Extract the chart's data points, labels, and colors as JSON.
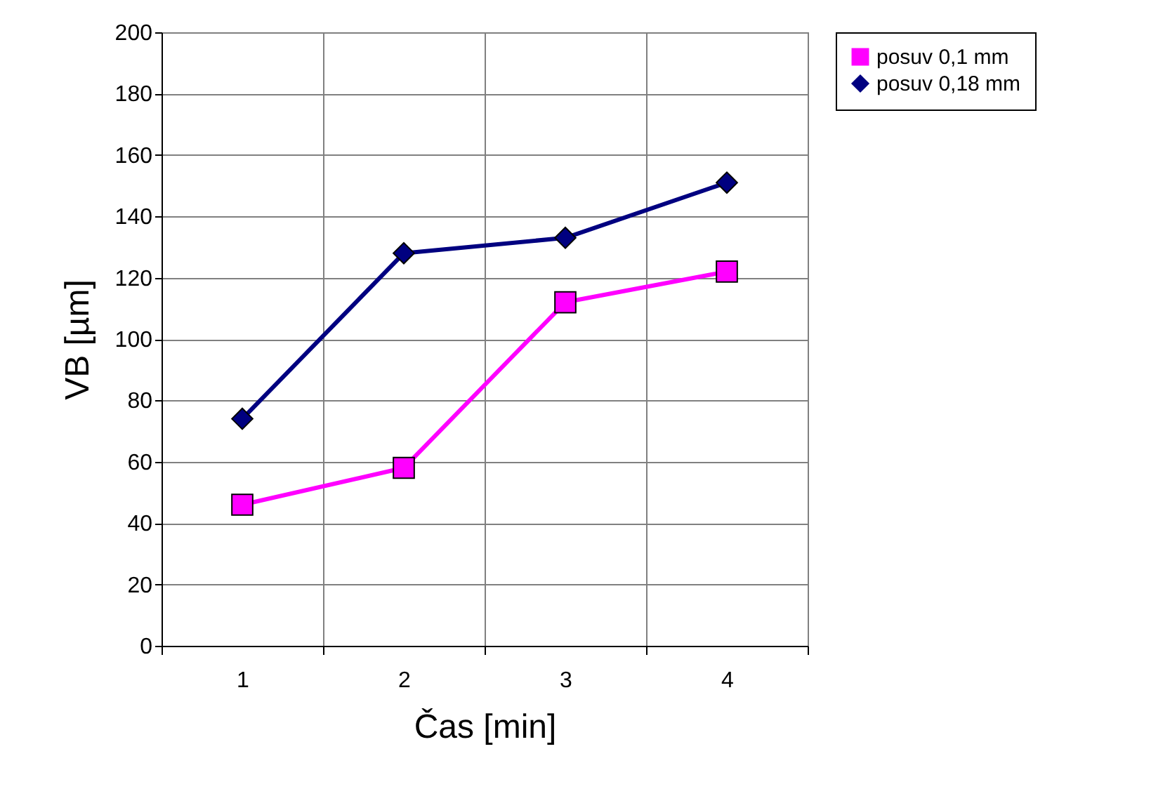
{
  "chart_data": {
    "type": "line",
    "xlabel": "Čas [min]",
    "ylabel": "VB [µm]",
    "categories": [
      "1",
      "2",
      "3",
      "4"
    ],
    "series": [
      {
        "name": "posuv 0,1 mm",
        "color": "#ff00ff",
        "marker": "square",
        "values": [
          46,
          58,
          112,
          122
        ]
      },
      {
        "name": "posuv 0,18 mm",
        "color": "#000080",
        "marker": "diamond",
        "values": [
          74,
          128,
          133,
          151
        ]
      }
    ],
    "ylim": [
      0,
      200
    ],
    "yticks": [
      0,
      20,
      40,
      60,
      80,
      100,
      120,
      140,
      160,
      180,
      200
    ],
    "grid": true,
    "legend": "right",
    "line_style": "solid"
  }
}
